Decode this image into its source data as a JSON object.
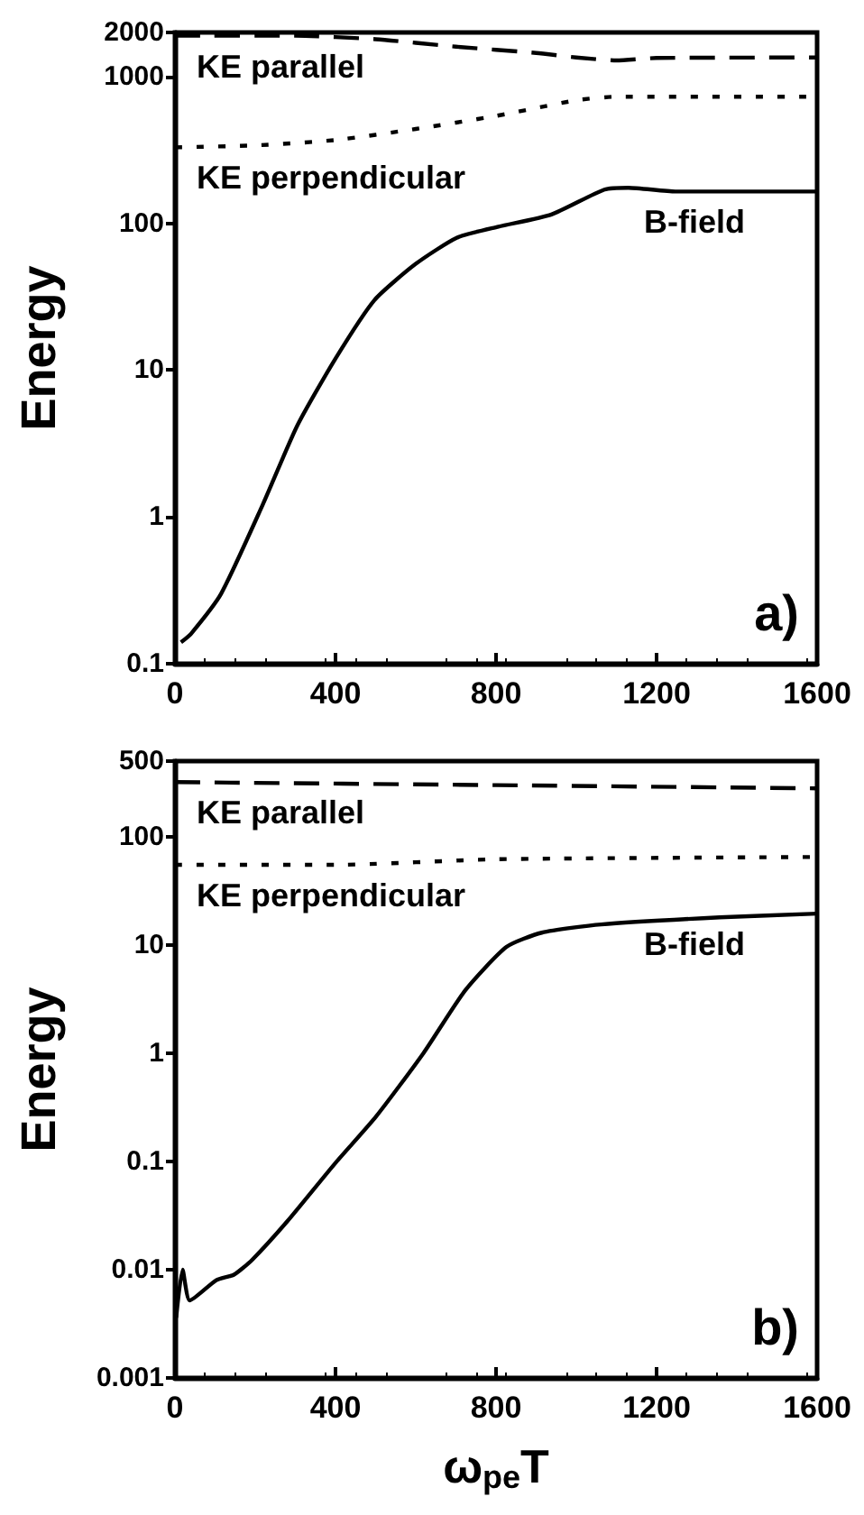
{
  "chart_data": [
    {
      "type": "line",
      "ylabel": "Energy",
      "log": "y",
      "grid": false,
      "marker": "none",
      "xlim": [
        0,
        1600
      ],
      "xticks": [
        0,
        400,
        800,
        1200,
        1600
      ],
      "ylim": [
        0.1,
        2000
      ],
      "yticks": [
        0.1,
        1,
        10,
        100,
        1000,
        2000
      ],
      "series": [
        {
          "name": "KE parallel",
          "color": "#000000",
          "line_style": "dashed",
          "x": [
            0,
            300,
            500,
            700,
            900,
            1000,
            1100,
            1200,
            1600
          ],
          "values": [
            1900,
            1900,
            1800,
            1600,
            1450,
            1350,
            1290,
            1340,
            1350
          ]
        },
        {
          "name": "KE perpendicular",
          "color": "#000000",
          "line_style": "dotted",
          "x": [
            0,
            200,
            400,
            600,
            800,
            1000,
            1100,
            1600
          ],
          "values": [
            330,
            340,
            370,
            440,
            540,
            690,
            730,
            730
          ]
        },
        {
          "name": "B-field",
          "color": "#000000",
          "line_style": "solid",
          "x": [
            15,
            40,
            115,
            218,
            305,
            400,
            497,
            600,
            703,
            806,
            938,
            1070,
            1130,
            1247,
            1600
          ],
          "values": [
            0.14,
            0.16,
            0.3,
            1.2,
            4.2,
            12,
            30,
            53,
            80,
            95,
            115,
            170,
            175,
            165,
            165
          ]
        }
      ],
      "annotations": [
        "a)"
      ]
    },
    {
      "type": "line",
      "ylabel": "Energy",
      "xlabel": "ω$_{pe}$T",
      "log": "y",
      "grid": false,
      "marker": "none",
      "xlim": [
        0,
        1600
      ],
      "xticks": [
        0,
        400,
        800,
        1200,
        1600
      ],
      "ylim": [
        0.001,
        500
      ],
      "yticks": [
        0.001,
        0.01,
        0.1,
        1,
        10,
        100,
        500
      ],
      "series": [
        {
          "name": "KE parallel",
          "color": "#000000",
          "line_style": "dashed",
          "x": [
            0,
            800,
            1600
          ],
          "values": [
            320,
            300,
            280
          ]
        },
        {
          "name": "KE perpendicular",
          "color": "#000000",
          "line_style": "dotted",
          "x": [
            0,
            400,
            800,
            1600
          ],
          "values": [
            55,
            55,
            62,
            65
          ]
        },
        {
          "name": "B-field",
          "color": "#000000",
          "line_style": "solid",
          "x": [
            3,
            19,
            37,
            103,
            147,
            192,
            280,
            398,
            501,
            619,
            723,
            826,
            914,
            1062,
            1357,
            1600
          ],
          "values": [
            0.0036,
            0.01,
            0.0052,
            0.008,
            0.009,
            0.0123,
            0.028,
            0.095,
            0.26,
            1.0,
            3.8,
            9.6,
            13,
            15.5,
            18,
            19.5
          ]
        }
      ],
      "annotations": [
        "b)"
      ]
    }
  ]
}
